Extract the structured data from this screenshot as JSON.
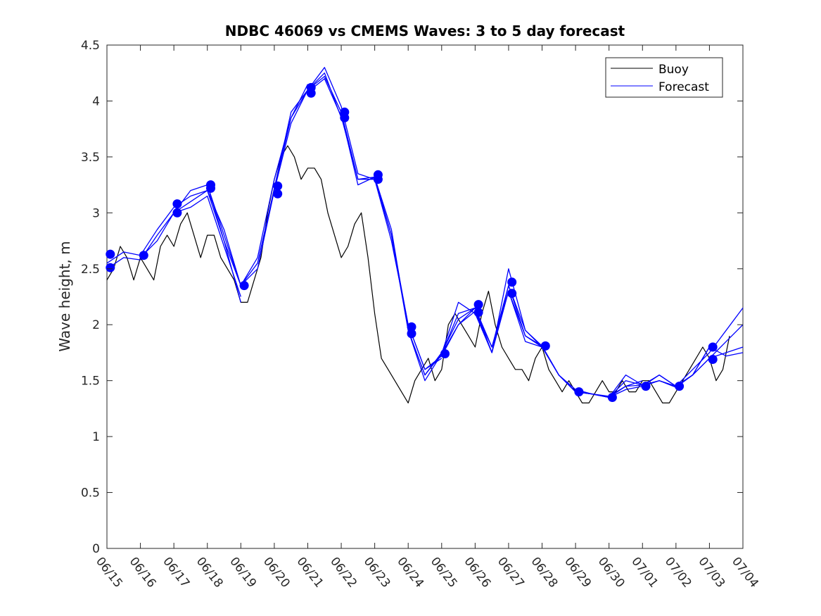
{
  "chart_data": {
    "type": "line",
    "title": "NDBC 46069 vs CMEMS Waves: 3 to 5 day forecast",
    "xlabel": "",
    "ylabel": "Wave height, m",
    "xlim": [
      "06/15",
      "07/04"
    ],
    "ylim": [
      0,
      4.5
    ],
    "xticks": [
      "06/15",
      "06/16",
      "06/17",
      "06/18",
      "06/19",
      "06/20",
      "06/21",
      "06/22",
      "06/23",
      "06/24",
      "06/25",
      "06/26",
      "06/27",
      "06/28",
      "06/29",
      "06/30",
      "07/01",
      "07/02",
      "07/03",
      "07/04"
    ],
    "yticks": [
      "0",
      "0.5",
      "1",
      "1.5",
      "2",
      "2.5",
      "3",
      "3.5",
      "4",
      "4.5"
    ],
    "grid": false,
    "legend_position": "top-right",
    "colors": {
      "buoy": "#000000",
      "forecast": "#0000ff"
    },
    "series": [
      {
        "name": "Buoy",
        "day_offsets": [
          0.0,
          0.2,
          0.4,
          0.6,
          0.8,
          1.0,
          1.2,
          1.4,
          1.6,
          1.8,
          2.0,
          2.2,
          2.4,
          2.6,
          2.8,
          3.0,
          3.2,
          3.4,
          3.6,
          3.8,
          4.0,
          4.2,
          4.4,
          4.6,
          4.8,
          5.0,
          5.2,
          5.4,
          5.6,
          5.8,
          6.0,
          6.2,
          6.4,
          6.6,
          6.8,
          7.0,
          7.2,
          7.4,
          7.6,
          7.8,
          8.0,
          8.2,
          8.4,
          8.6,
          8.8,
          9.0,
          9.2,
          9.4,
          9.6,
          9.8,
          10.0,
          10.2,
          10.4,
          10.6,
          10.8,
          11.0,
          11.2,
          11.4,
          11.6,
          11.8,
          12.0,
          12.2,
          12.4,
          12.6,
          12.8,
          13.0,
          13.2,
          13.4,
          13.6,
          13.8,
          14.0,
          14.2,
          14.4,
          14.6,
          14.8,
          15.0,
          15.2,
          15.4,
          15.6,
          15.8,
          16.0,
          16.2,
          16.4,
          16.6,
          16.8,
          17.0,
          17.2,
          17.4,
          17.6,
          17.8,
          18.0,
          18.2,
          18.4,
          18.6
        ],
        "values": [
          2.4,
          2.5,
          2.7,
          2.6,
          2.4,
          2.6,
          2.5,
          2.4,
          2.7,
          2.8,
          2.7,
          2.9,
          3.0,
          2.8,
          2.6,
          2.8,
          2.8,
          2.6,
          2.5,
          2.4,
          2.2,
          2.2,
          2.4,
          2.6,
          3.0,
          3.3,
          3.5,
          3.6,
          3.5,
          3.3,
          3.4,
          3.4,
          3.3,
          3.0,
          2.8,
          2.6,
          2.7,
          2.9,
          3.0,
          2.6,
          2.1,
          1.7,
          1.6,
          1.5,
          1.4,
          1.3,
          1.5,
          1.6,
          1.7,
          1.5,
          1.6,
          2.0,
          2.1,
          2.0,
          1.9,
          1.8,
          2.1,
          2.3,
          2.0,
          1.8,
          1.7,
          1.6,
          1.6,
          1.5,
          1.7,
          1.8,
          1.6,
          1.5,
          1.4,
          1.5,
          1.4,
          1.3,
          1.3,
          1.4,
          1.5,
          1.4,
          1.4,
          1.5,
          1.4,
          1.4,
          1.5,
          1.5,
          1.4,
          1.3,
          1.3,
          1.4,
          1.5,
          1.6,
          1.7,
          1.8,
          1.7,
          1.5,
          1.6,
          1.9
        ]
      },
      {
        "name": "Forecast",
        "runs": [
          {
            "day_offsets": [
              0.0,
              0.5,
              1.0,
              1.5,
              2.0,
              2.5,
              3.0,
              3.5,
              4.0
            ],
            "values": [
              2.55,
              2.65,
              2.62,
              2.85,
              3.05,
              3.15,
              3.2,
              2.75,
              2.2
            ]
          },
          {
            "day_offsets": [
              0.0,
              0.5,
              1.0,
              1.5,
              2.0,
              2.5,
              3.0,
              3.5,
              4.0
            ],
            "values": [
              2.5,
              2.6,
              2.58,
              2.8,
              3.0,
              3.05,
              3.15,
              2.7,
              2.25
            ]
          },
          {
            "day_offsets": [
              1.0,
              1.5,
              2.0,
              2.5,
              3.0,
              3.5,
              4.0,
              4.5,
              5.0,
              5.5,
              6.0
            ],
            "values": [
              2.6,
              2.75,
              3.0,
              3.2,
              3.25,
              2.8,
              2.35,
              2.6,
              3.3,
              3.85,
              4.15
            ]
          },
          {
            "day_offsets": [
              2.0,
              2.5,
              3.0,
              3.5,
              4.0,
              4.5,
              5.0,
              5.5,
              6.0,
              6.5,
              7.0
            ],
            "values": [
              3.0,
              3.1,
              3.2,
              2.85,
              2.35,
              2.5,
              3.2,
              3.8,
              4.1,
              4.25,
              3.85
            ]
          },
          {
            "day_offsets": [
              3.0,
              3.5,
              4.0,
              4.5,
              5.0,
              5.5,
              6.0,
              6.5,
              7.0,
              7.5,
              8.0
            ],
            "values": [
              3.25,
              2.75,
              2.35,
              2.55,
              3.22,
              3.9,
              4.1,
              4.3,
              3.95,
              3.35,
              3.3
            ]
          },
          {
            "day_offsets": [
              5.0,
              5.5,
              6.0,
              6.5,
              7.0,
              7.5,
              8.0,
              8.5,
              9.0,
              9.5,
              10.0
            ],
            "values": [
              3.22,
              3.85,
              4.1,
              4.22,
              3.9,
              3.3,
              3.32,
              2.8,
              2.0,
              1.6,
              1.7
            ]
          },
          {
            "day_offsets": [
              6.0,
              6.5,
              7.0,
              7.5,
              8.0,
              8.5,
              9.0,
              9.5,
              10.0,
              10.5,
              11.0
            ],
            "values": [
              4.08,
              4.2,
              3.86,
              3.3,
              3.3,
              2.75,
              2.0,
              1.6,
              1.72,
              2.0,
              2.15
            ]
          },
          {
            "day_offsets": [
              7.0,
              7.5,
              8.0,
              8.5,
              9.0,
              9.5,
              10.0,
              10.5,
              11.0,
              11.5,
              12.0
            ],
            "values": [
              3.88,
              3.25,
              3.32,
              2.85,
              1.95,
              1.55,
              1.75,
              2.05,
              2.15,
              1.75,
              2.35
            ]
          },
          {
            "day_offsets": [
              8.0,
              8.5,
              9.0,
              9.5,
              10.0,
              10.5,
              11.0,
              11.5,
              12.0,
              12.5,
              13.0
            ],
            "values": [
              3.3,
              2.8,
              1.95,
              1.5,
              1.74,
              2.0,
              2.12,
              1.8,
              2.3,
              1.85,
              1.8
            ]
          },
          {
            "day_offsets": [
              9.0,
              9.5,
              10.0,
              10.5,
              11.0,
              11.5,
              12.0,
              12.5,
              13.0,
              13.5,
              14.0
            ],
            "values": [
              1.95,
              1.55,
              1.74,
              2.1,
              2.15,
              1.8,
              2.35,
              1.9,
              1.8,
              1.55,
              1.4
            ]
          },
          {
            "day_offsets": [
              10.0,
              10.5,
              11.0,
              11.5,
              12.0,
              12.5,
              13.0,
              13.5,
              14.0,
              14.5,
              15.0
            ],
            "values": [
              1.74,
              2.2,
              2.1,
              1.75,
              2.5,
              1.95,
              1.81,
              1.55,
              1.4,
              1.38,
              1.35
            ]
          },
          {
            "day_offsets": [
              11.0,
              11.5,
              12.0,
              12.5,
              13.0,
              13.5,
              14.0,
              14.5,
              15.0,
              15.5,
              16.0
            ],
            "values": [
              2.12,
              1.75,
              2.3,
              1.9,
              1.81,
              1.55,
              1.42,
              1.38,
              1.35,
              1.45,
              1.5
            ]
          },
          {
            "day_offsets": [
              12.0,
              12.5,
              13.0,
              13.5,
              14.0,
              14.5,
              15.0,
              15.5,
              16.0,
              16.5,
              17.0
            ],
            "values": [
              2.35,
              1.95,
              1.8,
              1.55,
              1.4,
              1.38,
              1.35,
              1.42,
              1.45,
              1.55,
              1.45
            ]
          },
          {
            "day_offsets": [
              13.0,
              13.5,
              14.0,
              14.5,
              15.0,
              15.5,
              16.0,
              16.5,
              17.0,
              17.5,
              18.0
            ],
            "values": [
              1.81,
              1.55,
              1.4,
              1.38,
              1.36,
              1.45,
              1.46,
              1.55,
              1.45,
              1.55,
              1.8
            ]
          },
          {
            "day_offsets": [
              14.0,
              14.5,
              15.0,
              15.5,
              16.0,
              16.5,
              17.0,
              17.5,
              18.0,
              18.5,
              19.0
            ],
            "values": [
              1.41,
              1.38,
              1.35,
              1.5,
              1.46,
              1.5,
              1.45,
              1.6,
              1.75,
              1.95,
              2.15
            ]
          },
          {
            "day_offsets": [
              15.0,
              15.5,
              16.0,
              16.5,
              17.0,
              17.5,
              18.0,
              18.5,
              19.0
            ],
            "values": [
              1.35,
              1.55,
              1.46,
              1.5,
              1.44,
              1.55,
              1.7,
              1.85,
              2.0
            ]
          },
          {
            "day_offsets": [
              16.0,
              16.5,
              17.0,
              17.5,
              18.0,
              18.5,
              19.0
            ],
            "values": [
              1.45,
              1.5,
              1.45,
              1.55,
              1.7,
              1.75,
              1.8
            ]
          },
          {
            "day_offsets": [
              17.0,
              17.5,
              18.0,
              18.5,
              19.0
            ],
            "values": [
              1.45,
              1.55,
              1.8,
              1.72,
              1.75
            ]
          }
        ],
        "markers": {
          "day_offsets": [
            0.1,
            0.1,
            1.1,
            2.1,
            2.1,
            3.1,
            3.1,
            4.1,
            5.1,
            5.1,
            6.1,
            6.1,
            7.1,
            7.1,
            8.1,
            8.1,
            9.1,
            9.1,
            10.1,
            11.1,
            11.1,
            12.1,
            12.1,
            13.1,
            14.1,
            15.1,
            16.1,
            17.1,
            18.1,
            18.1
          ],
          "values": [
            2.63,
            2.51,
            2.62,
            3.08,
            3.0,
            3.25,
            3.22,
            2.35,
            3.24,
            3.17,
            4.12,
            4.07,
            3.9,
            3.85,
            3.34,
            3.3,
            1.98,
            1.92,
            1.74,
            2.18,
            2.11,
            2.38,
            2.28,
            1.81,
            1.4,
            1.35,
            1.45,
            1.45,
            1.8,
            1.69
          ]
        }
      }
    ]
  }
}
